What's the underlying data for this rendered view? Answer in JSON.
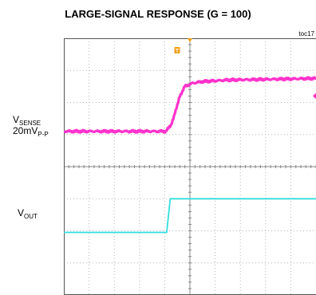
{
  "chart_data": {
    "type": "line",
    "title": "LARGE-SIGNAL RESPONSE (G = 100)",
    "figure_id": "toc17",
    "x_divisions": 10,
    "y_divisions": 8,
    "grid": true,
    "trigger_marker": "T",
    "colors": {
      "sense": "#ff33cc",
      "out": "#33dddd",
      "grid": "#b5b5b5",
      "frame": "#555555"
    },
    "series": [
      {
        "id": "sense",
        "label_main": "V",
        "label_sub": "SENSE",
        "scale_main": "20mV",
        "scale_sub": "P-P",
        "x": [
          0,
          4.05,
          4.25,
          4.5,
          4.6,
          4.8,
          5.1,
          5.5,
          6.5,
          8,
          10
        ],
        "y": [
          5.1,
          5.1,
          5.3,
          5.9,
          6.2,
          6.5,
          6.6,
          6.65,
          6.7,
          6.72,
          6.75
        ]
      },
      {
        "id": "out",
        "label_main": "V",
        "label_sub": "OUT",
        "x": [
          0,
          4.08,
          4.22,
          10
        ],
        "y": [
          1.95,
          1.95,
          3.0,
          3.0
        ]
      }
    ]
  }
}
